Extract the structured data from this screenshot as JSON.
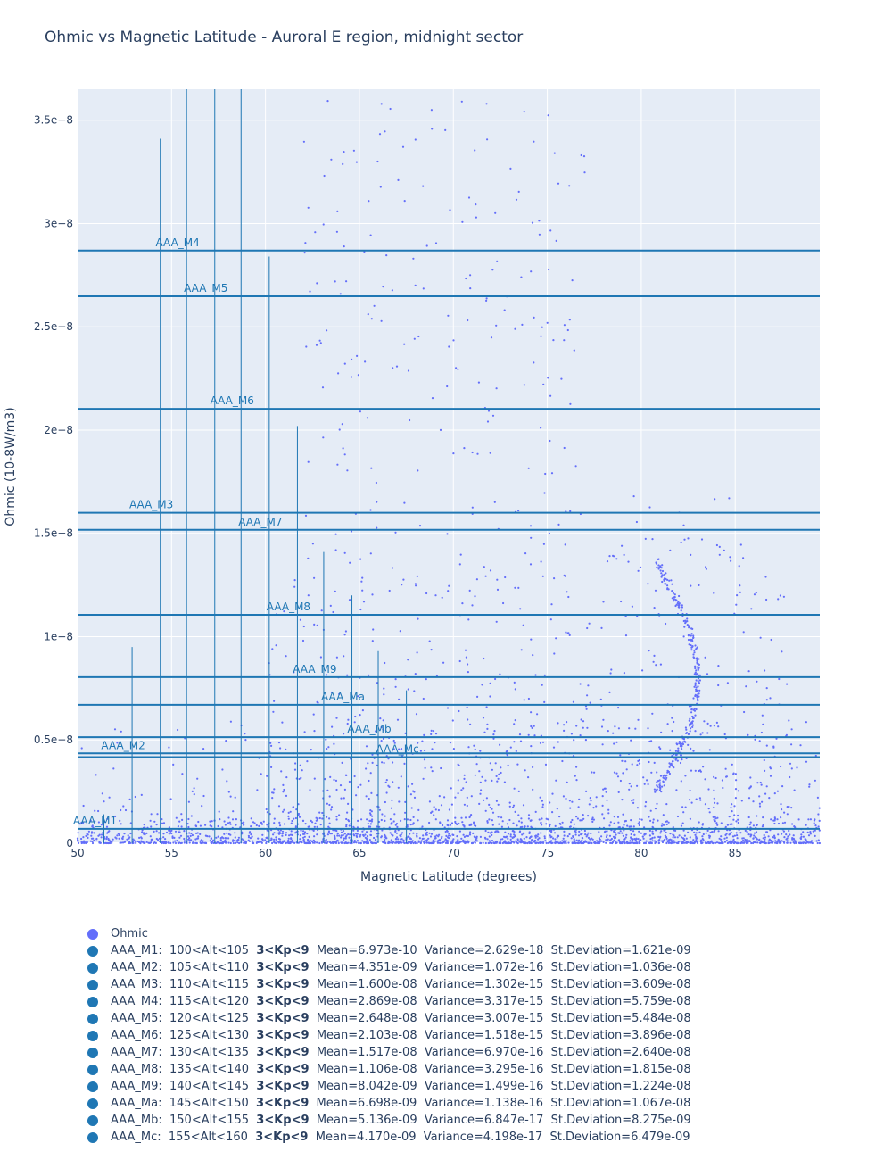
{
  "chart_data": {
    "type": "scatter",
    "title": "Ohmic vs Magnetic Latitude - Auroral E region, midnight sector",
    "xlabel": "Magnetic Latitude (degrees)",
    "ylabel": "Ohmic (10-8W/m3)",
    "xlim": [
      50,
      89.5
    ],
    "ylim": [
      0,
      3.65e-08
    ],
    "x_ticks": [
      50,
      55,
      60,
      65,
      70,
      75,
      80,
      85
    ],
    "y_ticks": [
      0,
      5e-09,
      1e-08,
      1.5e-08,
      2e-08,
      2.5e-08,
      3e-08,
      3.5e-08
    ],
    "y_tick_labels": [
      "0",
      "0.5e−8",
      "1e−8",
      "1.5e−8",
      "2e−8",
      "2.5e−8",
      "3e−8",
      "3.5e−8"
    ],
    "grid": true,
    "legend_position": "bottom",
    "ohmic_series": {
      "name": "Ohmic",
      "color": "#636efa",
      "marker": "dot"
    },
    "band_color": "#1f77b4",
    "bands": [
      {
        "name": "AAA_M1",
        "alt": "100<Alt<105",
        "kp": "3<Kp<9",
        "mean": 6.973e-10,
        "mean_text": "6.973e-10",
        "variance_text": "2.629e-18",
        "sd_text": "1.621e-09",
        "lat": 51.4,
        "max": 1.4e-09
      },
      {
        "name": "AAA_M2",
        "alt": "105<Alt<110",
        "kp": "3<Kp<9",
        "mean": 4.351e-09,
        "mean_text": "4.351e-09",
        "variance_text": "1.072e-16",
        "sd_text": "1.036e-08",
        "lat": 52.9,
        "max": 9.5e-09
      },
      {
        "name": "AAA_M3",
        "alt": "110<Alt<115",
        "kp": "3<Kp<9",
        "mean": 1.6e-08,
        "mean_text": "1.600e-08",
        "variance_text": "1.302e-15",
        "sd_text": "3.609e-08",
        "lat": 54.4,
        "max": 3.41e-08
      },
      {
        "name": "AAA_M4",
        "alt": "115<Alt<120",
        "kp": "3<Kp<9",
        "mean": 2.869e-08,
        "mean_text": "2.869e-08",
        "variance_text": "3.317e-15",
        "sd_text": "5.759e-08",
        "lat": 55.8,
        "max": 3.65e-08
      },
      {
        "name": "AAA_M5",
        "alt": "120<Alt<125",
        "kp": "3<Kp<9",
        "mean": 2.648e-08,
        "mean_text": "2.648e-08",
        "variance_text": "3.007e-15",
        "sd_text": "5.484e-08",
        "lat": 57.3,
        "max": 3.65e-08
      },
      {
        "name": "AAA_M6",
        "alt": "125<Alt<130",
        "kp": "3<Kp<9",
        "mean": 2.103e-08,
        "mean_text": "2.103e-08",
        "variance_text": "1.518e-15",
        "sd_text": "3.896e-08",
        "lat": 58.7,
        "max": 3.65e-08
      },
      {
        "name": "AAA_M7",
        "alt": "130<Alt<135",
        "kp": "3<Kp<9",
        "mean": 1.517e-08,
        "mean_text": "1.517e-08",
        "variance_text": "6.970e-16",
        "sd_text": "2.640e-08",
        "lat": 60.2,
        "max": 2.84e-08
      },
      {
        "name": "AAA_M8",
        "alt": "135<Alt<140",
        "kp": "3<Kp<9",
        "mean": 1.106e-08,
        "mean_text": "1.106e-08",
        "variance_text": "3.295e-16",
        "sd_text": "1.815e-08",
        "lat": 61.7,
        "max": 2.02e-08
      },
      {
        "name": "AAA_M9",
        "alt": "140<Alt<145",
        "kp": "3<Kp<9",
        "mean": 8.042e-09,
        "mean_text": "8.042e-09",
        "variance_text": "1.499e-16",
        "sd_text": "1.224e-08",
        "lat": 63.1,
        "max": 1.41e-08
      },
      {
        "name": "AAA_Ma",
        "alt": "145<Alt<150",
        "kp": "3<Kp<9",
        "mean": 6.698e-09,
        "mean_text": "6.698e-09",
        "variance_text": "1.138e-16",
        "sd_text": "1.067e-08",
        "lat": 64.6,
        "max": 1.2e-08
      },
      {
        "name": "AAA_Mb",
        "alt": "150<Alt<155",
        "kp": "3<Kp<9",
        "mean": 5.136e-09,
        "mean_text": "5.136e-09",
        "variance_text": "6.847e-17",
        "sd_text": "8.275e-09",
        "lat": 66.0,
        "max": 9.3e-09
      },
      {
        "name": "AAA_Mc",
        "alt": "155<Alt<160",
        "kp": "3<Kp<9",
        "mean": 4.17e-09,
        "mean_text": "4.170e-09",
        "variance_text": "4.198e-17",
        "sd_text": "6.479e-09",
        "lat": 67.5,
        "max": 7.4e-09
      }
    ]
  }
}
